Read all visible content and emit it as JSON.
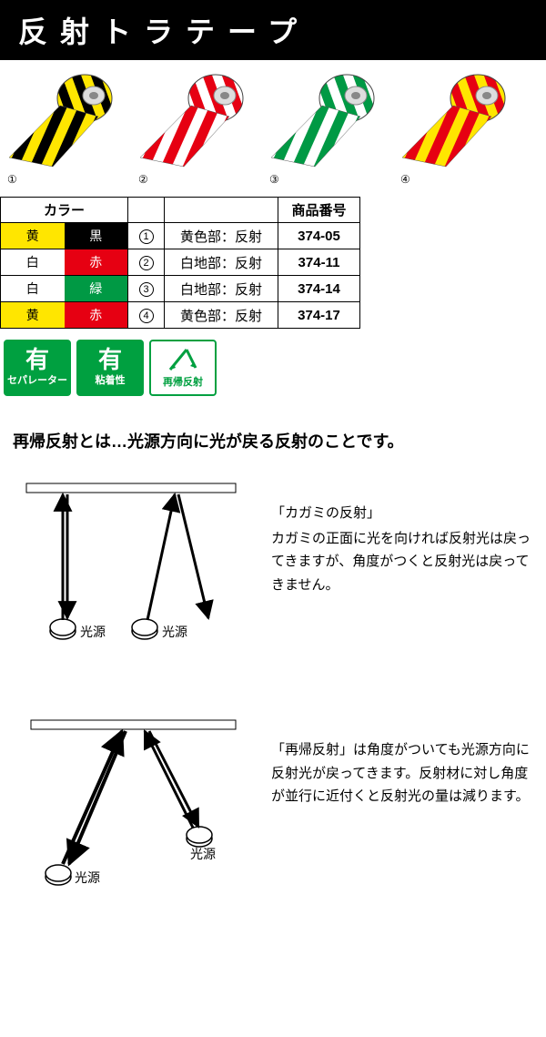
{
  "title": "反射トラテープ",
  "tapes": [
    {
      "num": "①",
      "c1": "#ffe600",
      "c2": "#000000"
    },
    {
      "num": "②",
      "c1": "#ffffff",
      "c2": "#e60012"
    },
    {
      "num": "③",
      "c1": "#ffffff",
      "c2": "#009944"
    },
    {
      "num": "④",
      "c1": "#ffe600",
      "c2": "#e60012"
    }
  ],
  "table": {
    "headers": {
      "color": "カラー",
      "blank": "",
      "desc": "",
      "code": "商品番号"
    },
    "rows": [
      {
        "c1": "黄",
        "c1bg": "#ffe600",
        "c1fg": "#000",
        "c2": "黒",
        "c2bg": "#000000",
        "c2fg": "#fff",
        "num": "1",
        "desc": "黄色部：反射",
        "code": "374-05"
      },
      {
        "c1": "白",
        "c1bg": "#ffffff",
        "c1fg": "#000",
        "c2": "赤",
        "c2bg": "#e60012",
        "c2fg": "#fff",
        "num": "2",
        "desc": "白地部：反射",
        "code": "374-11"
      },
      {
        "c1": "白",
        "c1bg": "#ffffff",
        "c1fg": "#000",
        "c2": "緑",
        "c2bg": "#009944",
        "c2fg": "#fff",
        "num": "3",
        "desc": "白地部：反射",
        "code": "374-14"
      },
      {
        "c1": "黄",
        "c1bg": "#ffe600",
        "c1fg": "#000",
        "c2": "赤",
        "c2bg": "#e60012",
        "c2fg": "#fff",
        "num": "4",
        "desc": "黄色部：反射",
        "code": "374-17"
      }
    ]
  },
  "badges": [
    {
      "top": "有",
      "bot": "セパレーター",
      "style": "inv"
    },
    {
      "top": "有",
      "bot": "粘着性",
      "style": "inv"
    },
    {
      "top": "",
      "bot": "再帰反射",
      "style": "plain",
      "icon": true
    }
  ],
  "retro": {
    "heading": "再帰反射とは…光源方向に光が戻る反射のことです。",
    "mirror": {
      "title": "「カガミの反射」",
      "text": "カガミの正面に光を向ければ反射光は戻ってきますが、角度がつくと反射光は戻ってきません。",
      "srcLabel": "光源"
    },
    "retroref": {
      "title": "「再帰反射」",
      "text": "は角度がついても光源方向に反射光が戻ってきます。反射材に対し角度が並行に近付くと反射光の量は減ります。",
      "srcLabel": "光源"
    }
  },
  "colors": {
    "badgeGreen": "#00a040"
  }
}
